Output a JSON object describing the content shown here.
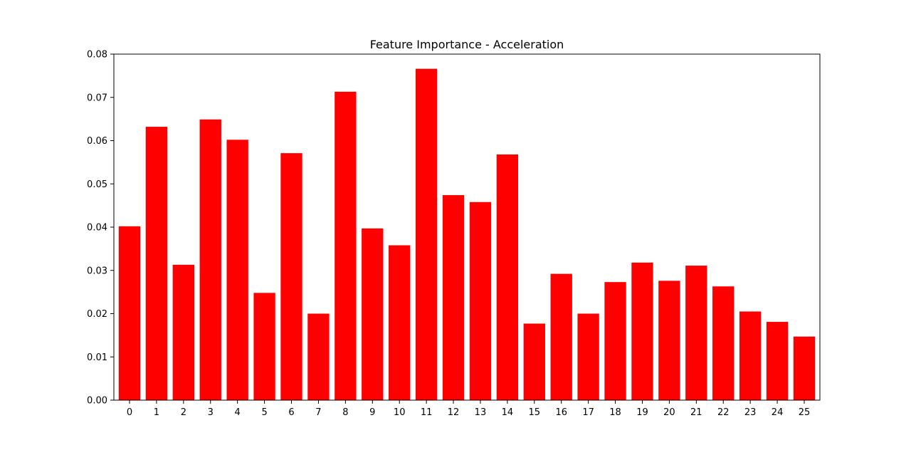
{
  "chart_data": {
    "type": "bar",
    "title": "Feature Importance - Acceleration",
    "xlabel": "",
    "ylabel": "",
    "categories": [
      "0",
      "1",
      "2",
      "3",
      "4",
      "5",
      "6",
      "7",
      "8",
      "9",
      "10",
      "11",
      "12",
      "13",
      "14",
      "15",
      "16",
      "17",
      "18",
      "19",
      "20",
      "21",
      "22",
      "23",
      "24",
      "25"
    ],
    "values": [
      0.0402,
      0.0632,
      0.0313,
      0.0649,
      0.0602,
      0.0248,
      0.0571,
      0.02,
      0.0713,
      0.0397,
      0.0358,
      0.0766,
      0.0474,
      0.0458,
      0.0568,
      0.0177,
      0.0292,
      0.02,
      0.0273,
      0.0318,
      0.0276,
      0.0311,
      0.0263,
      0.0205,
      0.0181,
      0.0147
    ],
    "ylim": [
      0,
      0.08
    ],
    "yticks": [
      "0.00",
      "0.01",
      "0.02",
      "0.03",
      "0.04",
      "0.05",
      "0.06",
      "0.07",
      "0.08"
    ],
    "grid": false,
    "legend": "none",
    "bar_color": "#ff0000"
  }
}
